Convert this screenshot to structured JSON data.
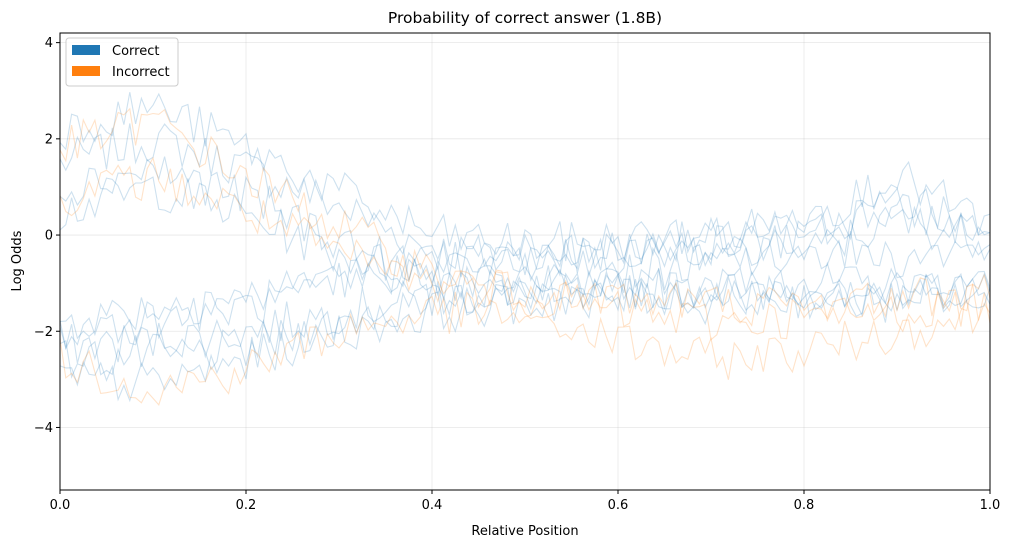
{
  "chart_data": {
    "type": "line",
    "title": "Probability of correct answer (1.8B)",
    "xlabel": "Relative Position",
    "ylabel": "Log Odds",
    "xlim": [
      0.0,
      1.0
    ],
    "ylim": [
      -5.3,
      4.2
    ],
    "xticks": [
      0.0,
      0.2,
      0.4,
      0.6,
      0.8,
      1.0
    ],
    "xtick_labels": [
      "0.0",
      "0.2",
      "0.4",
      "0.6",
      "0.8",
      "1.0"
    ],
    "yticks": [
      -4,
      -2,
      0,
      2,
      4
    ],
    "ytick_labels": [
      "−4",
      "−2",
      "0",
      "2",
      "4"
    ],
    "grid": true,
    "legend": {
      "placement": "upper-left",
      "entries": [
        {
          "label": "Correct",
          "color": "#1f77b4"
        },
        {
          "label": "Incorrect",
          "color": "#ff7f0e"
        }
      ]
    },
    "series": [
      {
        "color": "#1f77b4",
        "x": [
          0.0,
          0.1,
          0.2,
          0.3,
          0.4,
          0.5,
          0.6,
          0.7,
          0.8,
          0.9,
          1.0
        ],
        "y": [
          1.5,
          2.0,
          1.4,
          0.6,
          -0.3,
          -0.5,
          -0.3,
          -0.1,
          0.2,
          0.5,
          0.0
        ]
      },
      {
        "color": "#1f77b4",
        "x": [
          0.0,
          0.1,
          0.2,
          0.3,
          0.4,
          0.5,
          0.6,
          0.7,
          0.8,
          0.9,
          1.0
        ],
        "y": [
          -2.3,
          -2.2,
          -2.0,
          -1.6,
          -1.3,
          -1.2,
          -1.1,
          -1.1,
          -1.0,
          -1.1,
          -1.0
        ]
      },
      {
        "color": "#1f77b4",
        "x": [
          0.0,
          0.1,
          0.2,
          0.3,
          0.4,
          0.5,
          0.6,
          0.7,
          0.8,
          0.9,
          1.0
        ],
        "y": [
          -2.6,
          -2.5,
          -2.4,
          -1.8,
          -1.4,
          -1.0,
          -0.8,
          -0.6,
          -0.4,
          0.3,
          -0.1
        ]
      },
      {
        "color": "#1f77b4",
        "x": [
          0.0,
          0.1,
          0.2,
          0.3,
          0.4,
          0.5,
          0.6,
          0.7,
          0.8,
          0.9,
          1.0
        ],
        "y": [
          0.5,
          1.0,
          0.4,
          -0.4,
          -0.8,
          -1.0,
          -1.1,
          -1.1,
          -1.1,
          -1.2,
          -1.0
        ]
      },
      {
        "color": "#1f77b4",
        "x": [
          0.0,
          0.1,
          0.2,
          0.3,
          0.4,
          0.5,
          0.6,
          0.7,
          0.8,
          0.9,
          1.0
        ],
        "y": [
          -1.8,
          -1.5,
          -1.3,
          -0.9,
          -0.6,
          -0.4,
          -0.3,
          -0.2,
          -0.1,
          0.8,
          0.1
        ]
      },
      {
        "color": "#1f77b4",
        "x": [
          0.0,
          0.1,
          0.2,
          0.3,
          0.4,
          0.5,
          0.6,
          0.7,
          0.8,
          0.9,
          1.0
        ],
        "y": [
          2.2,
          2.7,
          1.8,
          0.9,
          0.0,
          -0.2,
          -0.1,
          0.0,
          0.3,
          1.2,
          0.2
        ]
      },
      {
        "color": "#1f77b4",
        "x": [
          0.0,
          0.1,
          0.2,
          0.3,
          0.4,
          0.5,
          0.6,
          0.7,
          0.8,
          0.9,
          1.0
        ],
        "y": [
          -3.0,
          -3.1,
          -2.6,
          -2.0,
          -1.6,
          -1.4,
          -1.3,
          -1.2,
          -1.2,
          -1.3,
          -1.1
        ]
      },
      {
        "color": "#1f77b4",
        "x": [
          0.0,
          0.1,
          0.2,
          0.3,
          0.4,
          0.5,
          0.6,
          0.7,
          0.8,
          0.9,
          1.0
        ],
        "y": [
          1.0,
          1.4,
          0.8,
          -0.1,
          -0.9,
          -1.2,
          -1.3,
          -1.4,
          -1.3,
          -1.4,
          -1.2
        ]
      },
      {
        "color": "#1f77b4",
        "x": [
          0.0,
          0.1,
          0.2,
          0.3,
          0.4,
          0.5,
          0.6,
          0.7,
          0.8,
          0.9,
          1.0
        ],
        "y": [
          -2.0,
          -1.7,
          -1.5,
          -1.0,
          -0.7,
          -0.5,
          -0.4,
          -0.3,
          -0.2,
          -0.5,
          -0.2
        ]
      },
      {
        "color": "#ff7f0e",
        "x": [
          0.0,
          0.1,
          0.2,
          0.3,
          0.4,
          0.5,
          0.6,
          0.7,
          0.8,
          0.9,
          1.0
        ],
        "y": [
          1.8,
          2.4,
          1.2,
          0.2,
          -0.8,
          -1.3,
          -1.6,
          -1.8,
          -1.7,
          -1.6,
          -1.4
        ]
      },
      {
        "color": "#ff7f0e",
        "x": [
          0.0,
          0.1,
          0.2,
          0.3,
          0.4,
          0.5,
          0.6,
          0.7,
          0.8,
          0.9,
          1.0
        ],
        "y": [
          -2.6,
          -3.2,
          -2.8,
          -2.0,
          -1.6,
          -1.7,
          -2.2,
          -2.6,
          -2.4,
          -2.0,
          -1.6
        ]
      },
      {
        "color": "#ff7f0e",
        "x": [
          0.0,
          0.1,
          0.2,
          0.3,
          0.4,
          0.5,
          0.6,
          0.7,
          0.8,
          0.9,
          1.0
        ],
        "y": [
          0.8,
          1.2,
          0.5,
          -0.4,
          -1.0,
          -1.1,
          -1.3,
          -1.4,
          -1.5,
          -1.3,
          -1.2
        ]
      }
    ]
  }
}
